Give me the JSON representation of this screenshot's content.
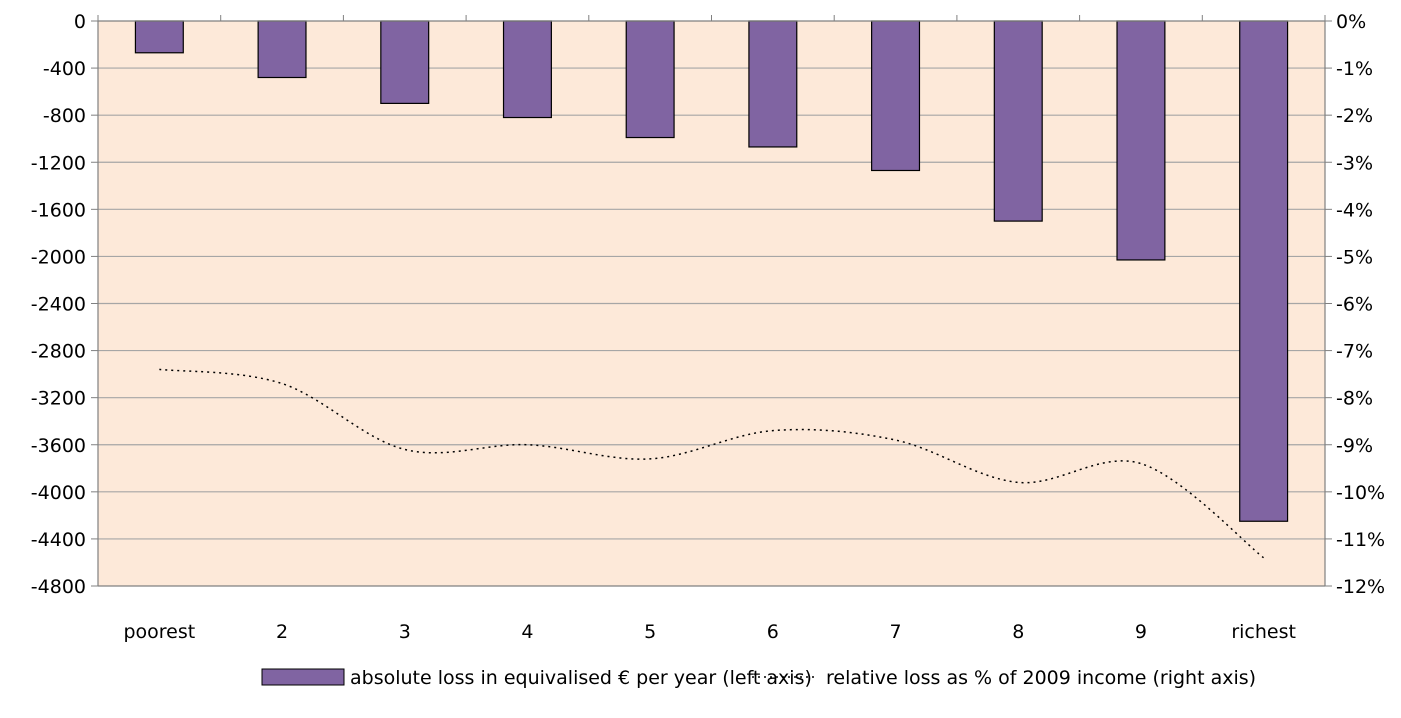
{
  "chart_data": {
    "type": "bar",
    "categories": [
      "poorest",
      "2",
      "3",
      "4",
      "5",
      "6",
      "7",
      "8",
      "9",
      "richest"
    ],
    "series": [
      {
        "name": "absolute loss in equivalised € per year (left axis)",
        "type": "bar",
        "axis": "left",
        "values": [
          -270,
          -480,
          -700,
          -820,
          -990,
          -1070,
          -1270,
          -1700,
          -2030,
          -4250
        ]
      },
      {
        "name": "relative loss as % of 2009 income (right axis)",
        "type": "line",
        "axis": "right",
        "style": "dotted",
        "values": [
          -7.4,
          -7.7,
          -9.1,
          -9.0,
          -9.3,
          -8.7,
          -8.9,
          -9.8,
          -9.4,
          -11.4
        ]
      }
    ],
    "left_axis": {
      "ylim": [
        -4800,
        0
      ],
      "ticks": [
        0,
        -400,
        -800,
        -1200,
        -1600,
        -2000,
        -2400,
        -2800,
        -3200,
        -3600,
        -4000,
        -4400,
        -4800
      ],
      "tick_labels": [
        "0",
        "-400",
        "-800",
        "-1200",
        "-1600",
        "-2000",
        "-2400",
        "-2800",
        "-3200",
        "-3600",
        "-4000",
        "-4400",
        "-4800"
      ]
    },
    "right_axis": {
      "ylim": [
        -12,
        0
      ],
      "tick_labels": [
        "0%",
        "-1%",
        "-2%",
        "-3%",
        "-4%",
        "-5%",
        "-6%",
        "-7%",
        "-8%",
        "-9%",
        "-10%",
        "-11%",
        "-12%"
      ]
    },
    "grid": true,
    "legend_position": "bottom",
    "colors": {
      "bar_fill": "#8064a2",
      "bar_stroke": "#000000",
      "plot_background": "#fde9d9",
      "gridline": "#a6a6a6",
      "line": "#000000"
    }
  }
}
